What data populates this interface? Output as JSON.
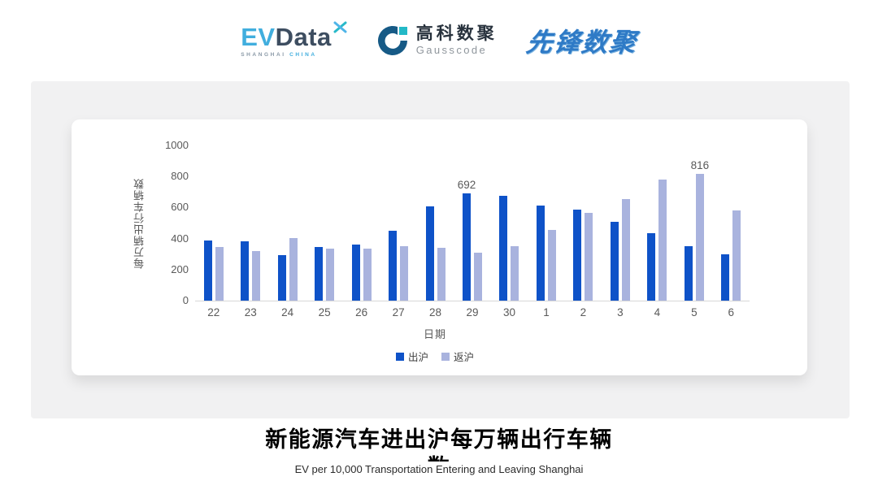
{
  "brand_bar": {
    "evdata_logo": {
      "ev": "EV",
      "data": "Data",
      "sub_shanghai": "SHANGHAI",
      "sub_china": "CHINA"
    },
    "gausscode_logo": {
      "name_cn": "高科数聚",
      "name_en": "Gausscode"
    },
    "xianfeng_logo": {
      "name_cn": "先锋数聚"
    }
  },
  "chart_data": {
    "type": "bar",
    "categories": [
      "22",
      "23",
      "24",
      "25",
      "26",
      "27",
      "28",
      "29",
      "30",
      "1",
      "2",
      "3",
      "4",
      "5",
      "6"
    ],
    "series": [
      {
        "name": "出沪",
        "color": "#0e52c8",
        "values": [
          390,
          383,
          293,
          345,
          360,
          450,
          608,
          692,
          678,
          612,
          588,
          510,
          437,
          353,
          298
        ]
      },
      {
        "name": "返沪",
        "color": "#a9b3de",
        "values": [
          345,
          320,
          403,
          336,
          334,
          350,
          340,
          310,
          353,
          453,
          568,
          655,
          778,
          816,
          582
        ]
      }
    ],
    "annotations": [
      {
        "series_index": 0,
        "point_index": 7,
        "text": "692"
      },
      {
        "series_index": 1,
        "point_index": 13,
        "text": "816"
      }
    ],
    "xlabel": "日期",
    "ylabel": "每万辆出行车辆数",
    "ylim": [
      0,
      1000
    ],
    "yticks": [
      0,
      200,
      400,
      600,
      800,
      1000
    ],
    "legend_position": "bottom",
    "grid": false
  },
  "footer": {
    "title": "新能源汽车进出沪每万辆出行车辆数",
    "subtitle": "EV per 10,000 Transportation Entering and Leaving Shanghai"
  },
  "colors": {
    "series_out": "#0e52c8",
    "series_return": "#a9b3de",
    "axis_line": "#d7d7d7",
    "tick_text": "#595959",
    "card_bg": "#f1f1f2",
    "evdata_blue": "#41aede",
    "evdata_dark": "#3d4d60",
    "gausscode_navy": "#165a86",
    "gausscode_teal": "#23b9c7",
    "xianfeng_blue": "#2e7ac6"
  }
}
